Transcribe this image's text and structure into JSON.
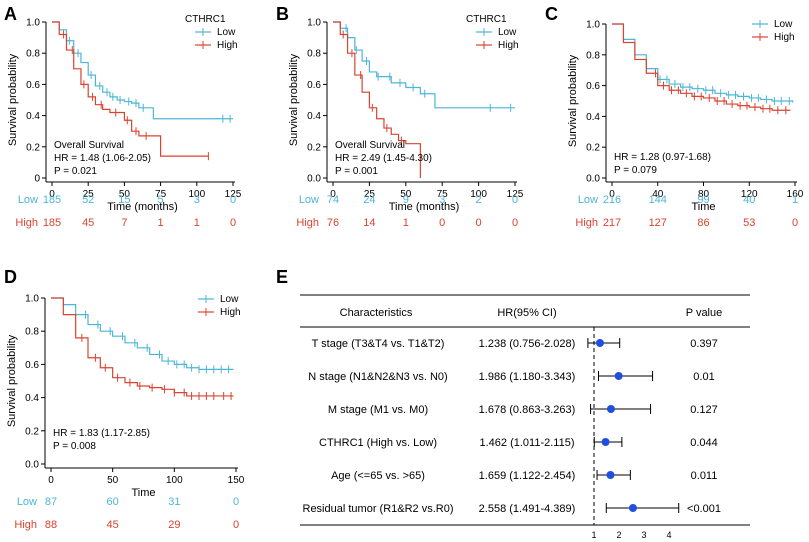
{
  "colors": {
    "low": "#4db6d6",
    "high": "#d9432f",
    "marker": "#1f4fe0",
    "text": "#000000"
  },
  "chart_data": [
    {
      "panel": "A",
      "type": "line",
      "subtype": "kaplan-meier",
      "xlabel": "Time (months)",
      "ylabel": "Survival probability",
      "xlim": [
        0,
        125
      ],
      "ylim": [
        0,
        1.0
      ],
      "xticks": [
        0,
        25,
        50,
        75,
        100,
        125
      ],
      "yticks": [
        0,
        0.2,
        0.4,
        0.6,
        0.8,
        1.0
      ],
      "ytick_labels": [
        "0",
        "0.2",
        "0.4",
        "0.6",
        "0.8",
        "1.0"
      ],
      "legend_title": "CTHRC1",
      "legend_position": "top-right",
      "annotations": [
        "Overall Survival",
        "HR = 1.48 (1.06-2.05)",
        "P = 0.021"
      ],
      "series": [
        {
          "name": "Low",
          "x": [
            0,
            5,
            10,
            15,
            20,
            25,
            30,
            35,
            40,
            45,
            50,
            55,
            60,
            70,
            80,
            100,
            125
          ],
          "y": [
            1.0,
            0.95,
            0.88,
            0.8,
            0.74,
            0.66,
            0.59,
            0.55,
            0.52,
            0.5,
            0.49,
            0.48,
            0.45,
            0.38,
            0.38,
            0.38,
            0.38
          ],
          "censor_x": [
            12,
            18,
            27,
            33,
            38,
            42,
            47,
            53,
            58,
            63,
            118,
            123
          ]
        },
        {
          "name": "High",
          "x": [
            0,
            5,
            10,
            15,
            20,
            25,
            30,
            35,
            40,
            50,
            55,
            60,
            70,
            75,
            108
          ],
          "y": [
            1.0,
            0.92,
            0.82,
            0.7,
            0.6,
            0.52,
            0.47,
            0.44,
            0.42,
            0.37,
            0.3,
            0.27,
            0.27,
            0.14,
            0.14
          ],
          "censor_x": [
            8,
            14,
            22,
            28,
            34,
            44,
            52,
            58,
            65,
            108
          ]
        }
      ],
      "risk_table": {
        "Low": [
          185,
          52,
          15,
          5,
          3,
          0
        ],
        "High": [
          185,
          45,
          7,
          1,
          1,
          0
        ]
      }
    },
    {
      "panel": "B",
      "type": "line",
      "subtype": "kaplan-meier",
      "xlabel": "Time (months)",
      "ylabel": "Survival probability",
      "xlim": [
        0,
        125
      ],
      "ylim": [
        0,
        1.0
      ],
      "xticks": [
        0,
        25,
        50,
        75,
        100,
        125
      ],
      "yticks": [
        0,
        0.2,
        0.4,
        0.6,
        0.8,
        1.0
      ],
      "ytick_labels": [
        "0.0",
        "0.2",
        "0.4",
        "0.6",
        "0.8",
        "1.0"
      ],
      "legend_title": "CTHRC1",
      "legend_position": "top-right",
      "annotations": [
        "Overall Survival",
        "HR = 2.49 (1.45-4.30)",
        "P = 0.001"
      ],
      "series": [
        {
          "name": "Low",
          "x": [
            0,
            5,
            10,
            15,
            20,
            25,
            30,
            40,
            50,
            60,
            70,
            75,
            125
          ],
          "y": [
            1.0,
            0.96,
            0.9,
            0.82,
            0.75,
            0.68,
            0.65,
            0.61,
            0.58,
            0.54,
            0.45,
            0.45,
            0.45
          ],
          "censor_x": [
            9,
            16,
            23,
            31,
            39,
            46,
            55,
            63,
            108,
            122
          ]
        },
        {
          "name": "High",
          "x": [
            0,
            5,
            10,
            15,
            20,
            25,
            30,
            35,
            40,
            45,
            50,
            55,
            60
          ],
          "y": [
            1.0,
            0.92,
            0.8,
            0.66,
            0.55,
            0.45,
            0.38,
            0.32,
            0.28,
            0.24,
            0.22,
            0.22,
            0.0
          ],
          "censor_x": [
            7,
            13,
            19,
            27,
            37,
            47
          ]
        }
      ],
      "risk_table": {
        "Low": [
          74,
          24,
          9,
          3,
          2,
          0
        ],
        "High": [
          76,
          14,
          1,
          0,
          0,
          0
        ]
      }
    },
    {
      "panel": "C",
      "type": "line",
      "subtype": "kaplan-meier",
      "xlabel": "Time",
      "ylabel": "Survival probability",
      "xlim": [
        0,
        160
      ],
      "ylim": [
        0,
        1.0
      ],
      "xticks": [
        0,
        40,
        80,
        120,
        160
      ],
      "yticks": [
        0,
        0.2,
        0.4,
        0.6,
        0.8,
        1.0
      ],
      "ytick_labels": [
        "0.0",
        "0.2",
        "0.4",
        "0.6",
        "0.8",
        "1.0"
      ],
      "legend_position": "top-right",
      "annotations": [
        "HR = 1.28 (0.97-1.68)",
        "P = 0.079"
      ],
      "series": [
        {
          "name": "Low",
          "x": [
            0,
            10,
            20,
            30,
            40,
            50,
            60,
            70,
            80,
            90,
            100,
            110,
            120,
            130,
            140,
            150,
            158
          ],
          "y": [
            1.0,
            0.9,
            0.8,
            0.71,
            0.64,
            0.61,
            0.59,
            0.58,
            0.57,
            0.55,
            0.54,
            0.53,
            0.52,
            0.51,
            0.5,
            0.5,
            0.49
          ],
          "censor_x": [
            42,
            48,
            55,
            62,
            68,
            75,
            82,
            88,
            95,
            102,
            108,
            115,
            122,
            128,
            135,
            142,
            148,
            155
          ]
        },
        {
          "name": "High",
          "x": [
            0,
            10,
            20,
            30,
            40,
            50,
            60,
            70,
            80,
            90,
            100,
            110,
            120,
            130,
            140,
            150,
            156
          ],
          "y": [
            1.0,
            0.88,
            0.77,
            0.68,
            0.6,
            0.57,
            0.55,
            0.53,
            0.52,
            0.5,
            0.48,
            0.47,
            0.46,
            0.45,
            0.44,
            0.44,
            0.44
          ],
          "censor_x": [
            38,
            45,
            52,
            58,
            65,
            72,
            78,
            85,
            92,
            98,
            105,
            112,
            118,
            125,
            132,
            138,
            145,
            152
          ]
        }
      ],
      "risk_table": {
        "Low": [
          216,
          144,
          99,
          40,
          1
        ],
        "High": [
          217,
          127,
          86,
          53,
          0
        ]
      }
    },
    {
      "panel": "D",
      "type": "line",
      "subtype": "kaplan-meier",
      "xlabel": "Time",
      "ylabel": "Survival probability",
      "xlim": [
        0,
        150
      ],
      "ylim": [
        0,
        1.0
      ],
      "xticks": [
        0,
        50,
        100,
        150
      ],
      "yticks": [
        0,
        0.2,
        0.4,
        0.6,
        0.8,
        1.0
      ],
      "ytick_labels": [
        "0.0",
        "0.2",
        "0.4",
        "0.6",
        "0.8",
        "1.0"
      ],
      "legend_position": "top-right",
      "annotations": [
        "HR = 1.83 (1.17-2.85)",
        "P = 0.008"
      ],
      "series": [
        {
          "name": "Low",
          "x": [
            0,
            10,
            20,
            30,
            40,
            50,
            60,
            70,
            80,
            90,
            100,
            110,
            120,
            130,
            148
          ],
          "y": [
            1.0,
            0.96,
            0.9,
            0.84,
            0.8,
            0.77,
            0.73,
            0.7,
            0.66,
            0.62,
            0.6,
            0.58,
            0.57,
            0.57,
            0.57
          ],
          "censor_x": [
            28,
            38,
            48,
            58,
            68,
            78,
            88,
            95,
            102,
            108,
            114,
            120,
            126,
            132,
            138,
            144
          ]
        },
        {
          "name": "High",
          "x": [
            0,
            10,
            20,
            30,
            40,
            50,
            60,
            70,
            80,
            90,
            100,
            110,
            120,
            148
          ],
          "y": [
            1.0,
            0.9,
            0.76,
            0.64,
            0.58,
            0.52,
            0.49,
            0.47,
            0.46,
            0.45,
            0.43,
            0.41,
            0.41,
            0.41
          ],
          "censor_x": [
            25,
            36,
            44,
            54,
            64,
            72,
            82,
            92,
            100,
            108,
            114,
            120,
            126,
            132,
            140,
            146
          ]
        }
      ],
      "risk_table": {
        "Low": [
          87,
          60,
          31,
          0
        ],
        "High": [
          88,
          45,
          29,
          0
        ]
      }
    },
    {
      "panel": "E",
      "type": "forest",
      "headers": {
        "characteristics": "Characteristics",
        "hr": "HR(95% CI)",
        "p": "P value"
      },
      "xlim": [
        1,
        4
      ],
      "xticks": [
        1,
        2,
        3,
        4
      ],
      "reference": 1,
      "rows": [
        {
          "label": "T stage (T3&T4 vs. T1&T2)",
          "hr_text": "1.238 (0.756-2.028)",
          "hr": 1.238,
          "lo": 0.756,
          "hi": 2.028,
          "p": "0.397"
        },
        {
          "label": "N stage (N1&N2&N3 vs. N0)",
          "hr_text": "1.986 (1.180-3.343)",
          "hr": 1.986,
          "lo": 1.18,
          "hi": 3.343,
          "p": "0.01"
        },
        {
          "label": "M stage (M1 vs. M0)",
          "hr_text": "1.678 (0.863-3.263)",
          "hr": 1.678,
          "lo": 0.863,
          "hi": 3.263,
          "p": "0.127"
        },
        {
          "label": "CTHRC1 (High vs. Low)",
          "hr_text": "1.462 (1.011-2.115)",
          "hr": 1.462,
          "lo": 1.011,
          "hi": 2.115,
          "p": "0.044"
        },
        {
          "label": "Age (<=65 vs. >65)",
          "hr_text": "1.659 (1.122-2.454)",
          "hr": 1.659,
          "lo": 1.122,
          "hi": 2.454,
          "p": "0.011"
        },
        {
          "label": "Residual tumor (R1&R2 vs.R0)",
          "hr_text": "2.558 (1.491-4.389)",
          "hr": 2.558,
          "lo": 1.491,
          "hi": 4.389,
          "p": "<0.001"
        }
      ]
    }
  ]
}
